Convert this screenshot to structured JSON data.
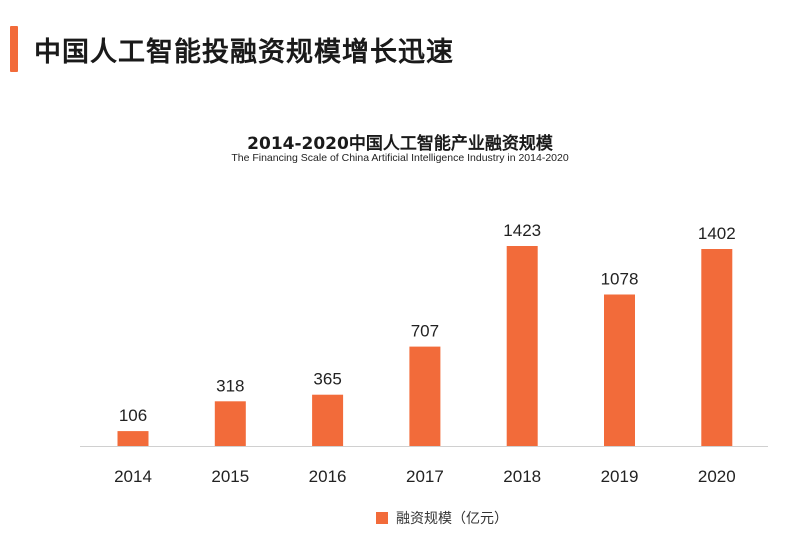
{
  "header": {
    "title": "中国人工智能投融资规模增长迅速"
  },
  "chart_data": {
    "type": "bar",
    "title": "2014-2020中国人工智能产业融资规模",
    "subtitle": "The Financing Scale of China Artificial Intelligence Industry  in 2014-2020",
    "categories": [
      "2014",
      "2015",
      "2016",
      "2017",
      "2018",
      "2019",
      "2020"
    ],
    "series": [
      {
        "name": "融资规模（亿元）",
        "values": [
          106,
          318,
          365,
          707,
          1423,
          1078,
          1402
        ],
        "color": "#f26b3a"
      }
    ],
    "data_labels": [
      "106",
      "318",
      "365",
      "707",
      "1423",
      "1078",
      "1402"
    ],
    "xlabel": "",
    "ylabel": "",
    "ylim": [
      0,
      1423
    ],
    "grid": false,
    "legend": "bottom-center"
  },
  "colors": {
    "accent": "#f26b3a",
    "axis": "#d0d0d0"
  }
}
